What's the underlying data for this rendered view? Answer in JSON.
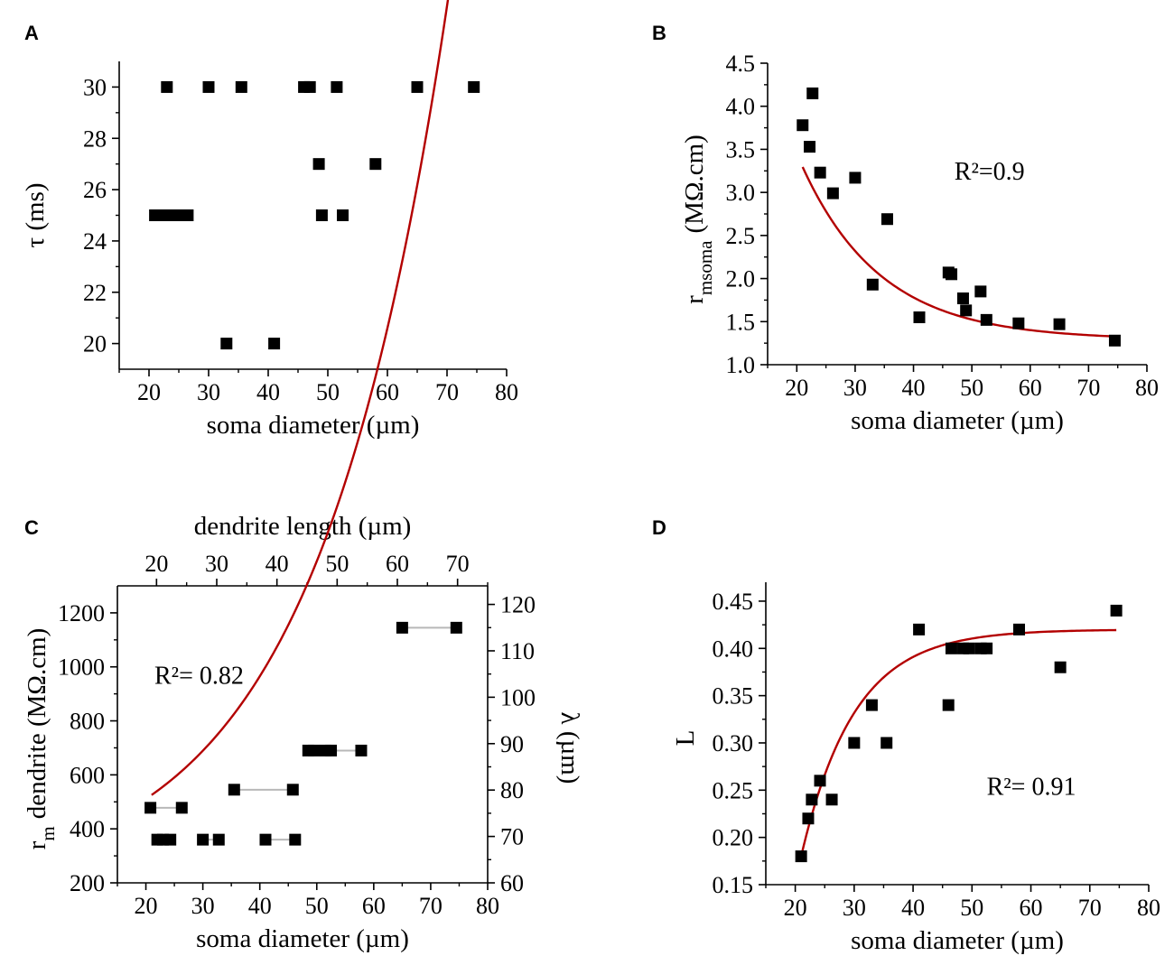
{
  "figure": {
    "fit_color": "#b30000",
    "connector_color": "#b8b8b8",
    "marker_color": "#000000"
  },
  "chart_data": [
    {
      "panel": "A",
      "type": "scatter",
      "xlabel": "soma diameter (µm)",
      "ylabel": "τ (ms)",
      "xlim": [
        15,
        80
      ],
      "ylim": [
        19,
        31
      ],
      "xticks": [
        20,
        30,
        40,
        50,
        60,
        70,
        80
      ],
      "yticks": [
        20,
        22,
        24,
        26,
        28,
        30
      ],
      "points": [
        {
          "x": 21,
          "y": 25
        },
        {
          "x": 22,
          "y": 25
        },
        {
          "x": 23,
          "y": 25
        },
        {
          "x": 24,
          "y": 25
        },
        {
          "x": 25,
          "y": 25
        },
        {
          "x": 26.5,
          "y": 25
        },
        {
          "x": 23,
          "y": 30
        },
        {
          "x": 30,
          "y": 30
        },
        {
          "x": 35.5,
          "y": 30
        },
        {
          "x": 33,
          "y": 20
        },
        {
          "x": 41,
          "y": 20
        },
        {
          "x": 46,
          "y": 30
        },
        {
          "x": 47,
          "y": 30
        },
        {
          "x": 48.5,
          "y": 27
        },
        {
          "x": 49,
          "y": 25
        },
        {
          "x": 51.5,
          "y": 30
        },
        {
          "x": 52.5,
          "y": 25
        },
        {
          "x": 58,
          "y": 27
        },
        {
          "x": 65,
          "y": 30
        },
        {
          "x": 74.5,
          "y": 30
        }
      ]
    },
    {
      "panel": "B",
      "type": "scatter",
      "xlabel": "soma diameter (µm)",
      "ylabel_main": "r",
      "ylabel_sub": "msoma",
      "ylabel_unit": "(MΩ.cm)",
      "annotation": "R²=0.9",
      "xlim": [
        15,
        80
      ],
      "ylim": [
        1.0,
        4.5
      ],
      "xticks": [
        20,
        30,
        40,
        50,
        60,
        70,
        80
      ],
      "yticks": [
        1.0,
        1.5,
        2.0,
        2.5,
        3.0,
        3.5,
        4.0,
        4.5
      ],
      "points": [
        {
          "x": 21,
          "y": 3.78
        },
        {
          "x": 22.2,
          "y": 3.53
        },
        {
          "x": 22.7,
          "y": 4.15
        },
        {
          "x": 24,
          "y": 3.23
        },
        {
          "x": 26.2,
          "y": 2.99
        },
        {
          "x": 30,
          "y": 3.17
        },
        {
          "x": 33,
          "y": 1.93
        },
        {
          "x": 35.5,
          "y": 2.69
        },
        {
          "x": 41,
          "y": 1.55
        },
        {
          "x": 46,
          "y": 2.07
        },
        {
          "x": 46.5,
          "y": 2.05
        },
        {
          "x": 48.5,
          "y": 1.77
        },
        {
          "x": 49,
          "y": 1.63
        },
        {
          "x": 51.5,
          "y": 1.85
        },
        {
          "x": 52.5,
          "y": 1.52
        },
        {
          "x": 58,
          "y": 1.48
        },
        {
          "x": 65,
          "y": 1.47
        },
        {
          "x": 74.5,
          "y": 1.28
        }
      ],
      "fit": {
        "type": "exp-decay",
        "x_range": [
          21,
          74.5
        ],
        "y0": 1.29,
        "A": 9.5,
        "t": 13.5
      }
    },
    {
      "panel": "C",
      "type": "scatter",
      "xlabel": "soma diameter (µm)",
      "x2label": "dendrite length (µm)",
      "ylabel_main": "r",
      "ylabel_sub": "m",
      "ylabel_rest": "dendrite (MΩ.cm)",
      "y2label": "λ (µm)",
      "annotation": "R²= 0.82",
      "xlim": [
        15,
        80
      ],
      "ylim": [
        200,
        1300
      ],
      "xticks": [
        20,
        30,
        40,
        50,
        60,
        70,
        80
      ],
      "yticks": [
        200,
        400,
        600,
        800,
        1000,
        1200
      ],
      "x2lim": [
        13.5,
        75
      ],
      "x2ticks": [
        20,
        30,
        40,
        50,
        60,
        70
      ],
      "y2lim": [
        60,
        124
      ],
      "y2ticks": [
        60,
        70,
        80,
        90,
        100,
        110,
        120
      ],
      "points": [
        {
          "x": 20.8,
          "y": 478
        },
        {
          "x": 26.3,
          "y": 478
        },
        {
          "x": 22,
          "y": 360
        },
        {
          "x": 23,
          "y": 360
        },
        {
          "x": 24.3,
          "y": 360
        },
        {
          "x": 30,
          "y": 360
        },
        {
          "x": 32.8,
          "y": 360
        },
        {
          "x": 41,
          "y": 360
        },
        {
          "x": 46.2,
          "y": 360
        },
        {
          "x": 35.5,
          "y": 545
        },
        {
          "x": 45.8,
          "y": 545
        },
        {
          "x": 48.5,
          "y": 690
        },
        {
          "x": 49.5,
          "y": 690
        },
        {
          "x": 51.5,
          "y": 690
        },
        {
          "x": 52.5,
          "y": 690
        },
        {
          "x": 57.8,
          "y": 690
        },
        {
          "x": 65,
          "y": 1145
        },
        {
          "x": 74.5,
          "y": 1145
        }
      ],
      "connectors": [
        {
          "x1": 20.8,
          "x2": 26.3,
          "y": 478
        },
        {
          "x1": 22,
          "x2": 24.3,
          "y": 360
        },
        {
          "x1": 30,
          "x2": 32.8,
          "y": 360
        },
        {
          "x1": 41,
          "x2": 46.2,
          "y": 360
        },
        {
          "x1": 35.5,
          "x2": 45.8,
          "y": 545
        },
        {
          "x1": 48.5,
          "x2": 57.8,
          "y": 690
        },
        {
          "x1": 65,
          "x2": 74.5,
          "y": 1145
        }
      ],
      "fit": {
        "type": "exp-growth",
        "x_range": [
          21,
          74.5
        ],
        "y0": 183,
        "A": 137.4,
        "t": 23
      }
    },
    {
      "panel": "D",
      "type": "scatter",
      "xlabel": "soma diameter (µm)",
      "ylabel": "L",
      "annotation": "R²= 0.91",
      "xlim": [
        15,
        80
      ],
      "ylim": [
        0.15,
        0.47
      ],
      "xticks": [
        20,
        30,
        40,
        50,
        60,
        70,
        80
      ],
      "yticks": [
        0.15,
        0.2,
        0.25,
        0.3,
        0.35,
        0.4,
        0.45
      ],
      "yformat": 2,
      "points": [
        {
          "x": 21,
          "y": 0.18
        },
        {
          "x": 22.2,
          "y": 0.22
        },
        {
          "x": 22.8,
          "y": 0.24
        },
        {
          "x": 24.2,
          "y": 0.26
        },
        {
          "x": 26.2,
          "y": 0.24
        },
        {
          "x": 30,
          "y": 0.3
        },
        {
          "x": 33,
          "y": 0.34
        },
        {
          "x": 35.5,
          "y": 0.3
        },
        {
          "x": 41,
          "y": 0.42
        },
        {
          "x": 46,
          "y": 0.34
        },
        {
          "x": 46.5,
          "y": 0.4
        },
        {
          "x": 48.5,
          "y": 0.4
        },
        {
          "x": 49.5,
          "y": 0.4
        },
        {
          "x": 51.5,
          "y": 0.4
        },
        {
          "x": 52.5,
          "y": 0.4
        },
        {
          "x": 58,
          "y": 0.42
        },
        {
          "x": 65,
          "y": 0.38
        },
        {
          "x": 74.5,
          "y": 0.44
        }
      ],
      "fit": {
        "type": "exp-rise",
        "x_range": [
          21,
          74.5
        ],
        "y0": 0.42,
        "A": 0.24,
        "t": 9
      }
    }
  ]
}
